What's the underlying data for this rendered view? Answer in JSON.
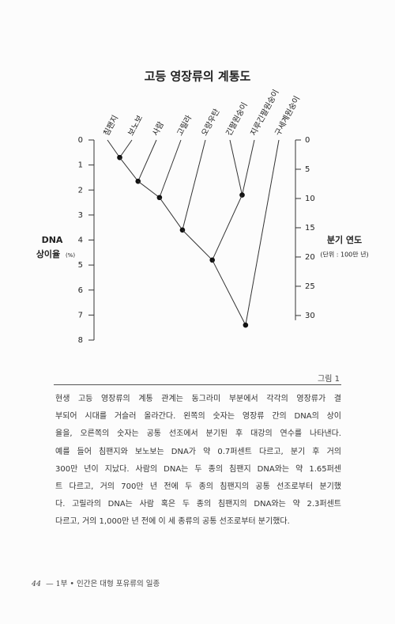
{
  "chart_data": {
    "type": "dendrogram",
    "title": "고등 영장류의 계통도",
    "ylabel": [
      "DNA",
      "상이율"
    ],
    "yunit": "(%)",
    "ylim": [
      0,
      8
    ],
    "yticks": [
      0,
      1,
      2,
      3,
      4,
      5,
      6,
      7,
      8
    ],
    "y2label": "분기 연도",
    "y2unit": "(단위 : 100만 년)",
    "y2lim": [
      0,
      34.2
    ],
    "y2ticks": [
      0,
      5,
      10,
      15,
      20,
      25,
      30
    ],
    "tree": {
      "height": 7.4,
      "children": [
        {
          "height": 4.8,
          "children": [
            {
              "height": 3.6,
              "children": [
                {
                  "height": 2.3,
                  "children": [
                    {
                      "height": 1.65,
                      "children": [
                        {
                          "height": 0.7,
                          "children": [
                            {
                              "name": "침팬지"
                            },
                            {
                              "name": "보노보"
                            }
                          ]
                        },
                        {
                          "name": "사람"
                        }
                      ]
                    },
                    {
                      "name": "고릴라"
                    }
                  ]
                },
                {
                  "name": "오랑우탄"
                }
              ]
            },
            {
              "height": 2.2,
              "children": [
                {
                  "name": "긴팔원숭이"
                },
                {
                  "name": "지루긴팔원숭이"
                }
              ]
            }
          ]
        },
        {
          "name": "구세계원숭이"
        }
      ]
    }
  },
  "caption": {
    "label": "그림 1",
    "lines": [
      "현생 고등 영장류의 계통 관계는 동그라미 부분에서 각각의 영장류가 결",
      "부되어 시대를 거슬러 올라간다. 왼쪽의 숫자는 영장류 간의 DNA의 상이",
      "율을, 오른쪽의 숫자는 공통 선조에서 분기된 후 대강의 연수를 나타낸다.",
      "예를 들어 침팬지와 보노보는 DNA가 약 0.7퍼센트 다르고, 분기 후 거의",
      "300만 년이 지났다. 사람의 DNA는 두 종의 침팬지 DNA와는 약 1.65퍼센",
      "트 다르고, 거의 700만 년 전에 두 종의 침팬지의 공통 선조로부터 분기했",
      "다. 고릴라의 DNA는 사람 혹은 두 종의 침팬지의 DNA와는 약 2.3퍼센트",
      "다르고, 거의 1,000만 년 전에 이 세 종류의 공통 선조로부터 분기했다."
    ]
  },
  "footer": {
    "page": "44",
    "text": "— 1부 • 인간은 대형 포유류의 일종"
  }
}
